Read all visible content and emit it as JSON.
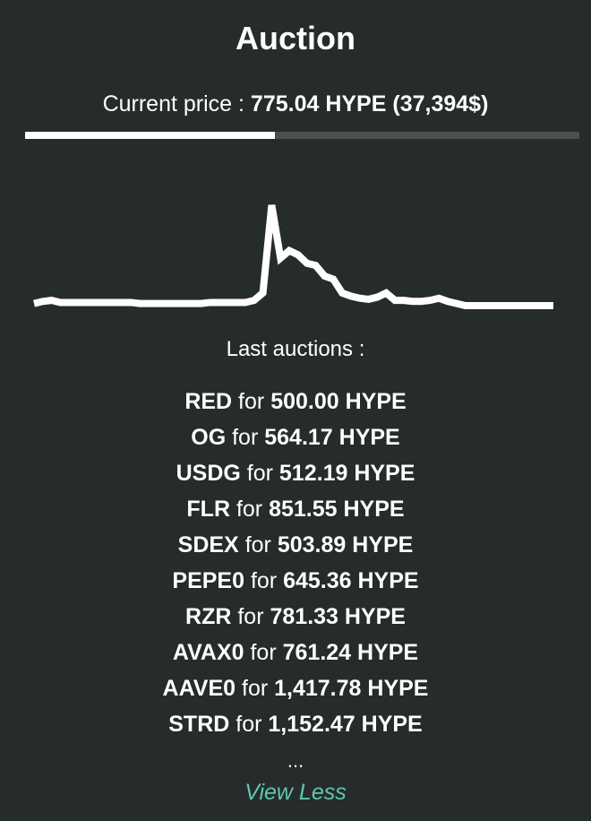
{
  "title": "Auction",
  "current_price": {
    "label": "Current price : ",
    "value": "775.04 HYPE",
    "usd": "(37,394$)"
  },
  "auction_progress_percent": 45,
  "chart_data": {
    "type": "line",
    "grid": false,
    "axes": "none",
    "values": [
      2,
      4,
      5,
      3,
      3,
      3,
      3,
      3,
      3,
      3,
      3,
      3,
      2,
      2,
      2,
      2,
      2,
      2,
      2,
      2,
      3,
      3,
      3,
      3,
      3,
      5,
      12,
      95,
      45,
      52,
      48,
      40,
      38,
      28,
      25,
      12,
      9,
      7,
      6,
      8,
      12,
      5,
      5,
      4,
      4,
      5,
      7,
      4,
      2,
      0,
      0,
      0,
      0,
      0,
      0,
      0,
      0,
      0,
      0,
      0
    ]
  },
  "last_auctions_label": "Last auctions :",
  "connector": "for",
  "auctions": [
    {
      "token": "RED",
      "amount": "500.00 HYPE"
    },
    {
      "token": "OG",
      "amount": "564.17 HYPE"
    },
    {
      "token": "USDG",
      "amount": "512.19 HYPE"
    },
    {
      "token": "FLR",
      "amount": "851.55 HYPE"
    },
    {
      "token": "SDEX",
      "amount": "503.89 HYPE"
    },
    {
      "token": "PEPE0",
      "amount": "645.36 HYPE"
    },
    {
      "token": "RZR",
      "amount": "781.33 HYPE"
    },
    {
      "token": "AVAX0",
      "amount": "761.24 HYPE"
    },
    {
      "token": "AAVE0",
      "amount": "1,417.78 HYPE"
    },
    {
      "token": "STRD",
      "amount": "1,152.47 HYPE"
    }
  ],
  "ellipsis": "...",
  "view_less": "View Less",
  "colors": {
    "background": "#262b2b",
    "accent": "#5fc9a9",
    "track": "#4a4f4f"
  }
}
